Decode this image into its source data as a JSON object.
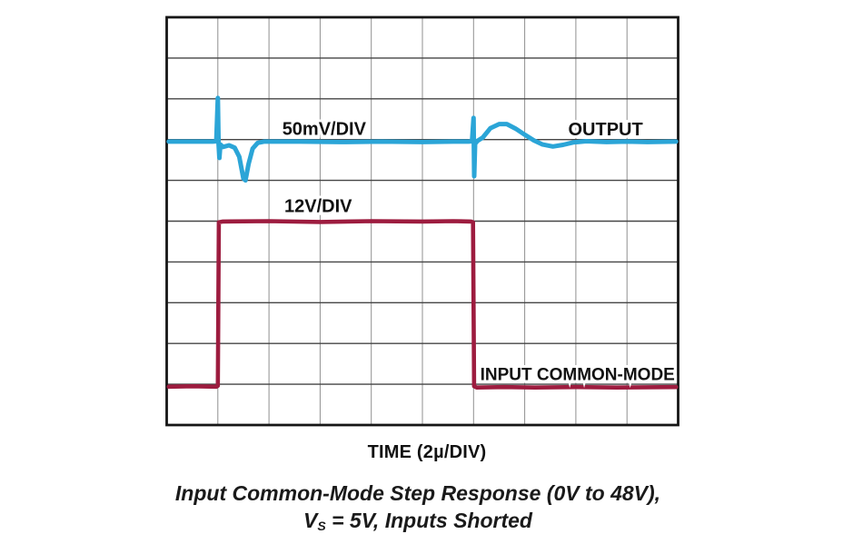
{
  "page": {
    "background": "#ffffff",
    "text_color": "#111111"
  },
  "figure": {
    "axis_label": "TIME (2µ/DIV)",
    "caption": {
      "line1": "Input Common-Mode Step Response (0V to 48V),",
      "line2_prefix": "V",
      "line2_subscript": "S",
      "line2_rest": " = 5V, Inputs Shorted"
    }
  },
  "chart_data": {
    "type": "line",
    "subtype": "oscilloscope",
    "title": "Input Common-Mode Step Response (0V to 48V), Vs = 5V, Inputs Shorted",
    "xlabel": "TIME (2µ/DIV)",
    "x_per_div": "2µs",
    "xlim_div": [
      0,
      10
    ],
    "ylim_div": [
      0,
      10
    ],
    "grid": {
      "cols": 10,
      "rows": 10,
      "on": true,
      "border_color": "#161616",
      "h_line_color": "#454545",
      "v_line_color": "#8f8f8f"
    },
    "series": [
      {
        "name": "OUTPUT",
        "scale": "50mV/DIV",
        "color": "#2BA5D7",
        "stroke_width": 5,
        "points_div": [
          [
            0.04,
            3.05
          ],
          [
            0.55,
            3.05
          ],
          [
            0.9,
            3.05
          ],
          [
            0.97,
            3.04
          ],
          [
            1.0,
            1.98
          ],
          [
            1.015,
            3.1
          ],
          [
            1.03,
            3.45
          ],
          [
            1.05,
            3.12
          ],
          [
            1.1,
            3.18
          ],
          [
            1.22,
            3.14
          ],
          [
            1.33,
            3.2
          ],
          [
            1.42,
            3.42
          ],
          [
            1.5,
            3.95
          ],
          [
            1.54,
            4.0
          ],
          [
            1.6,
            3.6
          ],
          [
            1.68,
            3.22
          ],
          [
            1.78,
            3.08
          ],
          [
            1.9,
            3.05
          ],
          [
            2.6,
            3.05
          ],
          [
            3.4,
            3.06
          ],
          [
            4.2,
            3.05
          ],
          [
            5.0,
            3.06
          ],
          [
            5.6,
            3.05
          ],
          [
            5.9,
            3.05
          ],
          [
            5.97,
            3.04
          ],
          [
            6.0,
            2.47
          ],
          [
            6.012,
            3.9
          ],
          [
            6.03,
            3.1
          ],
          [
            6.08,
            3.03
          ],
          [
            6.18,
            2.95
          ],
          [
            6.33,
            2.72
          ],
          [
            6.5,
            2.62
          ],
          [
            6.65,
            2.62
          ],
          [
            6.82,
            2.73
          ],
          [
            7.0,
            2.88
          ],
          [
            7.18,
            3.02
          ],
          [
            7.35,
            3.12
          ],
          [
            7.55,
            3.17
          ],
          [
            7.75,
            3.13
          ],
          [
            7.95,
            3.07
          ],
          [
            8.2,
            3.04
          ],
          [
            8.6,
            3.06
          ],
          [
            9.0,
            3.05
          ],
          [
            9.4,
            3.06
          ],
          [
            9.96,
            3.05
          ]
        ]
      },
      {
        "name": "INPUT COMMON-MODE",
        "scale": "12V/DIV",
        "color": "#9D1C3F",
        "stroke_width": 4.6,
        "points_div": [
          [
            0.04,
            9.06
          ],
          [
            0.5,
            9.05
          ],
          [
            0.97,
            9.06
          ],
          [
            1.0,
            9.04
          ],
          [
            1.02,
            5.03
          ],
          [
            1.1,
            5.01
          ],
          [
            2.0,
            5.0
          ],
          [
            3.0,
            5.02
          ],
          [
            4.0,
            5.0
          ],
          [
            5.0,
            5.01
          ],
          [
            5.6,
            5.0
          ],
          [
            5.95,
            5.01
          ],
          [
            5.99,
            5.03
          ],
          [
            6.01,
            9.05
          ],
          [
            6.06,
            9.08
          ],
          [
            6.6,
            9.07
          ],
          [
            7.2,
            9.08
          ],
          [
            8.0,
            9.07
          ],
          [
            8.8,
            9.08
          ],
          [
            9.96,
            9.07
          ]
        ]
      }
    ],
    "annotations": [
      {
        "text": "50mV/DIV",
        "x_div": 2.26,
        "y_div": 2.88,
        "font_size": 20
      },
      {
        "text": "OUTPUT",
        "x_div": 7.85,
        "y_div": 2.9,
        "font_size": 20
      },
      {
        "text": "12V/DIV",
        "x_div": 2.3,
        "y_div": 4.78,
        "font_size": 20
      },
      {
        "text": "INPUT COMMON-MODE",
        "x_div": 6.13,
        "y_div": 8.9,
        "font_size": 19
      }
    ],
    "step_event": {
      "from": "0V",
      "to": "48V",
      "rise_at_div": 1,
      "fall_at_div": 6,
      "amplitude_div": 4
    }
  }
}
